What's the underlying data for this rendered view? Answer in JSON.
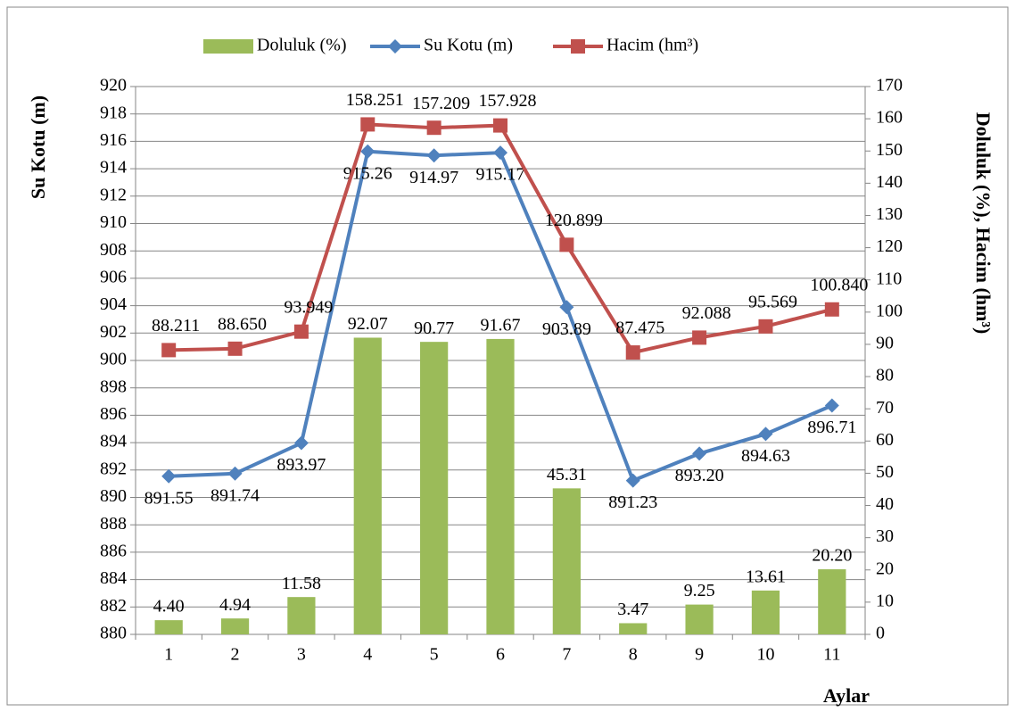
{
  "chart_data": {
    "type": "bar-line",
    "categories": [
      "1",
      "2",
      "3",
      "4",
      "5",
      "6",
      "7",
      "8",
      "9",
      "10",
      "11"
    ],
    "series": [
      {
        "name": "Doluluk (%)",
        "type": "bar",
        "axis": "y2",
        "color": "#9bbb59",
        "values": [
          4.4,
          4.94,
          11.58,
          92.07,
          90.77,
          91.67,
          45.31,
          3.47,
          9.25,
          13.61,
          20.2
        ],
        "value_labels": [
          "4.40",
          "4.94",
          "11.58",
          "92.07",
          "90.77",
          "91.67",
          "45.31",
          "3.47",
          "9.25",
          "13.61",
          "20.20"
        ]
      },
      {
        "name": "Su Kotu (m)",
        "type": "line",
        "axis": "y",
        "marker": "diamond",
        "color": "#4f81bd",
        "values": [
          891.55,
          891.74,
          893.97,
          915.26,
          914.97,
          915.17,
          903.89,
          891.23,
          893.2,
          894.63,
          896.71
        ],
        "value_labels": [
          "891.55",
          "891.74",
          "893.97",
          "915.26",
          "914.97",
          "915.17",
          "903.89",
          "891.23",
          "893.20",
          "894.63",
          "896.71"
        ]
      },
      {
        "name": "Hacim (hm³)",
        "type": "line",
        "axis": "y2",
        "marker": "square",
        "color": "#c0504d",
        "values": [
          88.211,
          88.65,
          93.949,
          158.251,
          157.209,
          157.928,
          120.899,
          87.475,
          92.088,
          95.569,
          100.84
        ],
        "value_labels": [
          "88.211",
          "88.650",
          "93.949",
          "158.251",
          "157.209",
          "157.928",
          "120.899",
          "87.475",
          "92.088",
          "95.569",
          "100.840"
        ]
      }
    ],
    "ylabel": "Su Kotu (m)",
    "y2label": "Doluluk (%), Hacim (hm³)",
    "xlabel": "Aylar",
    "ylim": [
      880,
      920
    ],
    "yticks": [
      880,
      882,
      884,
      886,
      888,
      890,
      892,
      894,
      896,
      898,
      900,
      902,
      904,
      906,
      908,
      910,
      912,
      914,
      916,
      918,
      920
    ],
    "y2lim": [
      0,
      170
    ],
    "y2ticks": [
      0,
      10,
      20,
      30,
      40,
      50,
      60,
      70,
      80,
      90,
      100,
      110,
      120,
      130,
      140,
      150,
      160,
      170
    ],
    "grid": true,
    "legend": "top"
  }
}
